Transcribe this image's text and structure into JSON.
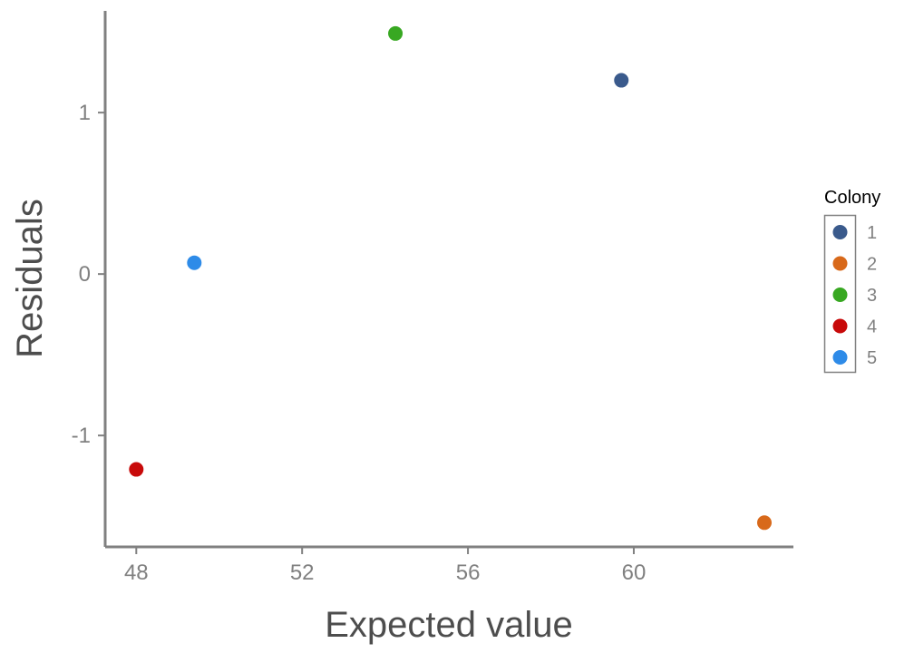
{
  "chart_data": {
    "type": "scatter",
    "xlabel": "Expected value",
    "ylabel": "Residuals",
    "xlim": [
      47.25,
      63.85
    ],
    "ylim": [
      -1.69,
      1.63
    ],
    "xticks": [
      48,
      52,
      56,
      60
    ],
    "yticks": [
      -1,
      0,
      1
    ],
    "grid": false,
    "legend_title": "Colony",
    "legend_position": "right",
    "points": [
      {
        "colony": "1",
        "x": 59.7,
        "y": 1.2,
        "color": "#3a5a8c"
      },
      {
        "colony": "2",
        "x": 63.15,
        "y": -1.54,
        "color": "#d8691a"
      },
      {
        "colony": "3",
        "x": 54.25,
        "y": 1.49,
        "color": "#38a822"
      },
      {
        "colony": "4",
        "x": 48.0,
        "y": -1.21,
        "color": "#c80a0a"
      },
      {
        "colony": "5",
        "x": 49.4,
        "y": 0.07,
        "color": "#2e8be8"
      }
    ],
    "legend": [
      {
        "label": "1",
        "color": "#3a5a8c"
      },
      {
        "label": "2",
        "color": "#d8691a"
      },
      {
        "label": "3",
        "color": "#38a822"
      },
      {
        "label": "4",
        "color": "#c80a0a"
      },
      {
        "label": "5",
        "color": "#2e8be8"
      }
    ]
  }
}
